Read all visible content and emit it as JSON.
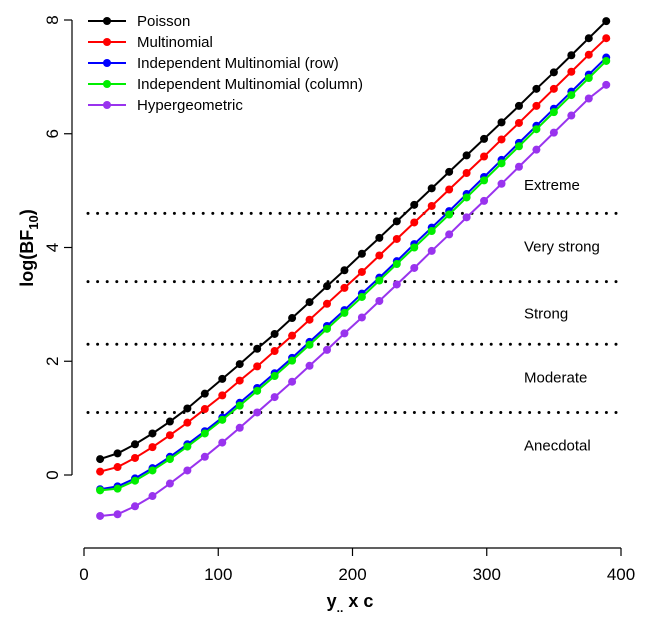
{
  "chart_data": {
    "type": "line",
    "xlabel": {
      "main": "y",
      "sub": "..",
      "rest": " x c"
    },
    "ylabel": {
      "main": "log(BF",
      "sub": "10",
      "close": ")"
    },
    "xlim": [
      0,
      400
    ],
    "ylim": [
      -1.2,
      8
    ],
    "x_ticks": [
      0,
      100,
      200,
      300,
      400
    ],
    "y_ticks": [
      0,
      2,
      4,
      6,
      8
    ],
    "grid": false,
    "legend_position": "top-left",
    "x": [
      12,
      25,
      38,
      51,
      64,
      77,
      90,
      103,
      116,
      129,
      142,
      155,
      168,
      181,
      194,
      207,
      220,
      233,
      246,
      259,
      272,
      285,
      298,
      311,
      324,
      337,
      350,
      363,
      376,
      389
    ],
    "series": [
      {
        "name": "Poisson",
        "color": "#000000",
        "values": [
          0.28,
          0.38,
          0.54,
          0.73,
          0.94,
          1.17,
          1.43,
          1.69,
          1.95,
          2.22,
          2.48,
          2.76,
          3.04,
          3.32,
          3.6,
          3.89,
          4.17,
          4.46,
          4.75,
          5.04,
          5.33,
          5.62,
          5.91,
          6.2,
          6.49,
          6.79,
          7.08,
          7.38,
          7.68,
          7.98
        ]
      },
      {
        "name": "Multinomial",
        "color": "#ff0000",
        "values": [
          0.06,
          0.14,
          0.3,
          0.49,
          0.7,
          0.92,
          1.16,
          1.4,
          1.66,
          1.91,
          2.18,
          2.45,
          2.73,
          3.01,
          3.29,
          3.57,
          3.86,
          4.15,
          4.44,
          4.73,
          5.02,
          5.31,
          5.6,
          5.9,
          6.19,
          6.49,
          6.79,
          7.09,
          7.39,
          7.68
        ]
      },
      {
        "name": "Independent Multinomial (row)",
        "color": "#0000ff",
        "values": [
          -0.25,
          -0.2,
          -0.06,
          0.12,
          0.32,
          0.54,
          0.77,
          1.01,
          1.27,
          1.53,
          1.79,
          2.06,
          2.34,
          2.62,
          2.9,
          3.19,
          3.47,
          3.76,
          4.06,
          4.35,
          4.64,
          4.94,
          5.24,
          5.54,
          5.84,
          6.14,
          6.44,
          6.74,
          7.04,
          7.34
        ]
      },
      {
        "name": "Independent Multinomial (column)",
        "color": "#00ee00",
        "values": [
          -0.27,
          -0.24,
          -0.1,
          0.08,
          0.28,
          0.5,
          0.73,
          0.97,
          1.22,
          1.48,
          1.74,
          2.01,
          2.29,
          2.57,
          2.85,
          3.13,
          3.42,
          3.71,
          4.0,
          4.29,
          4.58,
          4.88,
          5.18,
          5.48,
          5.78,
          6.08,
          6.38,
          6.68,
          6.98,
          7.28
        ]
      },
      {
        "name": "Hypergeometric",
        "color": "#9933ee",
        "values": [
          -0.72,
          -0.69,
          -0.55,
          -0.37,
          -0.15,
          0.08,
          0.32,
          0.57,
          0.83,
          1.1,
          1.37,
          1.64,
          1.92,
          2.2,
          2.49,
          2.77,
          3.06,
          3.35,
          3.64,
          3.94,
          4.23,
          4.53,
          4.82,
          5.12,
          5.42,
          5.72,
          6.02,
          6.32,
          6.62,
          6.86
        ]
      }
    ],
    "reference_lines": [
      1.1,
      2.3,
      3.4,
      4.6
    ],
    "zones": [
      {
        "label": "Extreme",
        "y": 5.1
      },
      {
        "label": "Very strong",
        "y": 4.02
      },
      {
        "label": "Strong",
        "y": 2.84
      },
      {
        "label": "Moderate",
        "y": 1.71
      },
      {
        "label": "Anecdotal",
        "y": 0.52
      }
    ]
  }
}
